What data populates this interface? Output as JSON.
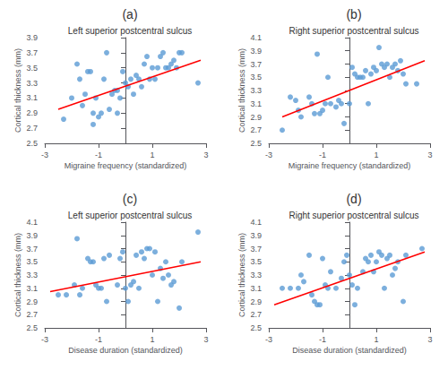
{
  "chart_data": [
    {
      "type": "scatter",
      "annotations": [
        "(a)"
      ],
      "title": "Left superior postcentral sulcus",
      "xlabel": "Migraine frequency (standardized)",
      "ylabel": "Cortical thickness (mm)",
      "xlim": [
        -3,
        3
      ],
      "ylim": [
        2.5,
        3.9
      ],
      "xticks": [
        -3,
        -1,
        1,
        3
      ],
      "yticks": [
        2.5,
        2.7,
        2.9,
        3.1,
        3.3,
        3.5,
        3.7,
        3.9
      ],
      "grid": false,
      "series": [
        {
          "type": "scatter",
          "color": "#5b9bd5",
          "x": [
            -2.3,
            -2.0,
            -1.8,
            -1.7,
            -1.6,
            -1.5,
            -1.4,
            -1.3,
            -1.2,
            -1.2,
            -1.1,
            -1.0,
            -0.9,
            -0.8,
            -0.7,
            -0.6,
            -0.5,
            -0.4,
            -0.3,
            -0.3,
            -0.2,
            -0.1,
            0.0,
            0.1,
            0.2,
            0.3,
            0.4,
            0.5,
            0.6,
            0.7,
            0.8,
            0.9,
            1.0,
            1.1,
            1.2,
            1.3,
            1.4,
            1.5,
            1.6,
            1.7,
            1.8,
            1.9,
            2.0,
            2.1,
            2.7
          ],
          "values": [
            2.82,
            3.1,
            3.55,
            3.35,
            3.0,
            3.15,
            3.45,
            3.45,
            2.9,
            2.75,
            3.1,
            2.85,
            2.9,
            3.35,
            3.7,
            2.95,
            3.15,
            3.2,
            3.2,
            2.9,
            3.1,
            3.45,
            3.3,
            3.25,
            3.35,
            3.15,
            3.4,
            3.35,
            3.25,
            3.55,
            3.65,
            3.35,
            3.5,
            3.35,
            3.5,
            3.65,
            3.7,
            3.5,
            3.5,
            3.55,
            3.6,
            3.5,
            3.7,
            3.7,
            3.3
          ]
        },
        {
          "type": "line",
          "color": "#ff0000",
          "x": [
            -2.5,
            2.8
          ],
          "values": [
            2.95,
            3.6
          ]
        }
      ]
    },
    {
      "type": "scatter",
      "annotations": [
        "(b)"
      ],
      "title": "Right superior postcentral sulcus",
      "xlabel": "Migraine frequency (standardized)",
      "ylabel": "Cortical thickness (mm)",
      "xlim": [
        -3,
        3
      ],
      "ylim": [
        2.5,
        4.1
      ],
      "xticks": [
        -3,
        -1,
        1,
        3
      ],
      "yticks": [
        2.5,
        2.7,
        2.9,
        3.1,
        3.3,
        3.5,
        3.7,
        3.9,
        4.1
      ],
      "grid": false,
      "series": [
        {
          "type": "scatter",
          "color": "#5b9bd5",
          "x": [
            -2.5,
            -2.2,
            -2.0,
            -1.9,
            -1.8,
            -1.5,
            -1.4,
            -1.3,
            -1.2,
            -1.1,
            -1.0,
            -0.9,
            -0.8,
            -0.7,
            -0.5,
            -0.4,
            -0.3,
            -0.2,
            0.0,
            0.1,
            0.2,
            0.3,
            0.4,
            0.5,
            0.6,
            0.7,
            0.8,
            0.9,
            1.0,
            1.1,
            1.2,
            1.3,
            1.4,
            1.5,
            1.6,
            1.7,
            1.8,
            1.9,
            2.0,
            2.1,
            2.5
          ],
          "values": [
            2.7,
            3.2,
            3.15,
            3.0,
            2.9,
            3.2,
            3.1,
            2.95,
            3.85,
            2.95,
            3.0,
            3.1,
            3.5,
            3.1,
            3.05,
            3.15,
            3.1,
            2.8,
            3.1,
            3.65,
            3.55,
            3.5,
            3.5,
            3.5,
            3.6,
            3.1,
            3.55,
            3.65,
            3.6,
            3.95,
            3.7,
            3.65,
            3.7,
            3.5,
            3.65,
            3.7,
            3.6,
            3.75,
            3.55,
            3.4,
            3.4
          ]
        },
        {
          "type": "line",
          "color": "#ff0000",
          "x": [
            -2.5,
            2.8
          ],
          "values": [
            2.9,
            3.75
          ]
        }
      ]
    },
    {
      "type": "scatter",
      "annotations": [
        "(c)"
      ],
      "title": "Left superior postcentral sulcus",
      "xlabel": "Disease duration (standardized)",
      "ylabel": "Cortical thickness (mm)",
      "xlim": [
        -3,
        3
      ],
      "ylim": [
        2.5,
        4.1
      ],
      "xticks": [
        -3,
        -1,
        1,
        3
      ],
      "yticks": [
        2.5,
        2.7,
        2.9,
        3.1,
        3.3,
        3.5,
        3.7,
        3.9,
        4.1
      ],
      "grid": false,
      "series": [
        {
          "type": "scatter",
          "color": "#5b9bd5",
          "x": [
            -2.5,
            -2.2,
            -1.9,
            -1.8,
            -1.7,
            -1.6,
            -1.4,
            -1.3,
            -1.2,
            -1.1,
            -1.0,
            -0.9,
            -0.8,
            -0.7,
            -0.6,
            -0.3,
            -0.2,
            -0.1,
            0.0,
            0.1,
            0.2,
            0.3,
            0.4,
            0.5,
            0.6,
            0.7,
            0.8,
            0.9,
            1.0,
            1.1,
            1.2,
            1.3,
            1.4,
            1.5,
            1.6,
            1.7,
            1.8,
            2.0,
            2.1,
            2.7
          ],
          "values": [
            3.0,
            3.0,
            3.15,
            3.85,
            3.0,
            3.1,
            3.55,
            3.5,
            3.5,
            3.15,
            3.1,
            3.1,
            3.55,
            2.9,
            3.6,
            3.15,
            3.55,
            3.65,
            3.1,
            2.9,
            3.15,
            3.2,
            3.6,
            3.1,
            3.65,
            3.55,
            3.7,
            3.7,
            3.3,
            3.65,
            2.9,
            3.4,
            3.25,
            3.5,
            3.3,
            3.15,
            3.2,
            2.8,
            3.5,
            3.95
          ]
        },
        {
          "type": "line",
          "color": "#ff0000",
          "x": [
            -2.8,
            2.8
          ],
          "values": [
            3.05,
            3.5
          ]
        }
      ]
    },
    {
      "type": "scatter",
      "annotations": [
        "(d)"
      ],
      "title": "Right superior postcentral sulcus",
      "xlabel": "Disease duration (standardized)",
      "ylabel": "Cortical thickness (mm)",
      "xlim": [
        -3,
        3
      ],
      "ylim": [
        2.5,
        4.1
      ],
      "xticks": [
        -3,
        -1,
        1,
        3
      ],
      "yticks": [
        2.5,
        2.7,
        2.9,
        3.1,
        3.3,
        3.5,
        3.7,
        3.9,
        4.1
      ],
      "grid": false,
      "series": [
        {
          "type": "scatter",
          "color": "#5b9bd5",
          "x": [
            -2.5,
            -2.2,
            -1.9,
            -1.8,
            -1.7,
            -1.5,
            -1.4,
            -1.3,
            -1.2,
            -1.1,
            -1.0,
            -0.9,
            -0.8,
            -0.7,
            -0.5,
            -0.3,
            -0.2,
            -0.1,
            0.0,
            0.1,
            0.2,
            0.3,
            0.5,
            0.6,
            0.7,
            0.8,
            0.9,
            1.0,
            1.1,
            1.2,
            1.3,
            1.4,
            1.5,
            1.6,
            1.7,
            1.8,
            2.0,
            2.1,
            2.7
          ],
          "values": [
            3.1,
            3.1,
            3.1,
            3.3,
            3.2,
            3.6,
            3.0,
            2.9,
            2.85,
            2.85,
            3.55,
            3.15,
            3.1,
            3.35,
            3.1,
            3.25,
            3.5,
            3.6,
            3.3,
            3.15,
            2.85,
            3.1,
            3.35,
            3.55,
            3.5,
            3.6,
            3.35,
            3.5,
            3.65,
            3.6,
            3.1,
            3.55,
            3.6,
            3.3,
            3.4,
            3.5,
            2.9,
            3.6,
            3.7
          ]
        },
        {
          "type": "line",
          "color": "#ff0000",
          "x": [
            -2.8,
            2.8
          ],
          "values": [
            2.85,
            3.65
          ]
        }
      ]
    }
  ]
}
